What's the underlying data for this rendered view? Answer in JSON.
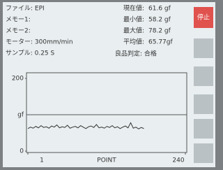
{
  "info": {
    "left": [
      "ファイル: EPI",
      "メモー1:",
      "メモー2:",
      "モーター: 300mm/min",
      "サンプル: 0.25 S"
    ],
    "stats": [
      {
        "label": "現在値:",
        "value": "61.6 gf"
      },
      {
        "label": "最小値:",
        "value": "58.2 gf"
      },
      {
        "label": "最大値:",
        "value": "78.2 gf"
      },
      {
        "label": "平均値:",
        "value": "65.77gf"
      }
    ],
    "judgement": "良品判定: 合格"
  },
  "buttons": [
    "停止"
  ],
  "chart_data": {
    "type": "line",
    "xlabel": "POINT",
    "x": [
      1,
      5,
      9,
      13,
      17,
      21,
      25,
      29,
      33,
      37,
      41,
      45,
      49,
      53,
      57,
      61,
      65,
      69,
      73,
      77,
      81,
      85,
      89,
      93,
      97,
      101,
      105,
      109,
      113,
      117,
      121,
      125,
      129,
      133,
      137,
      141,
      145,
      149,
      153,
      157,
      161,
      165,
      169,
      173,
      177
    ],
    "series": [
      {
        "color": "#333333",
        "values": [
          62,
          66,
          63,
          68,
          64,
          70,
          65,
          67,
          63,
          69,
          66,
          72,
          64,
          67,
          65,
          71,
          63,
          66,
          68,
          64,
          70,
          66,
          62,
          67,
          69,
          65,
          73,
          64,
          66,
          63,
          68,
          65,
          70,
          64,
          67,
          62,
          66,
          69,
          64,
          78,
          63,
          66,
          61,
          65,
          62
        ]
      }
    ],
    "xlim": [
      1,
      240
    ],
    "xticks": [
      1,
      240
    ],
    "ylim": [
      0,
      200
    ],
    "yticks": [
      0,
      {
        "value": 100,
        "label": "gf"
      },
      200
    ]
  }
}
